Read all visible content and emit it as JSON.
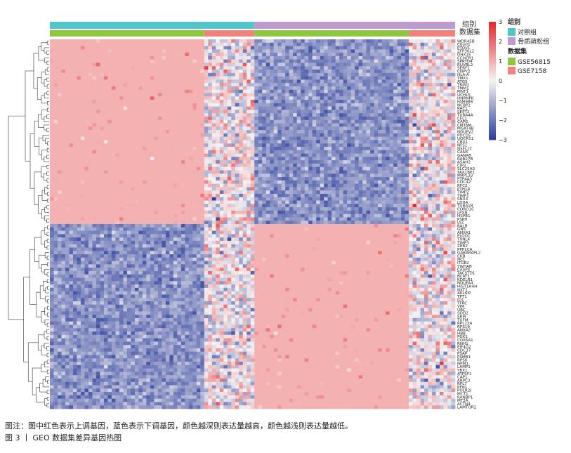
{
  "chart_data": {
    "type": "heatmap",
    "title": "",
    "annotation_rows": [
      {
        "name": "组别",
        "values": [
          "对照组",
          "骨质疏松组"
        ]
      },
      {
        "name": "数据集",
        "values": [
          "GSE56815",
          "GSE7158"
        ]
      }
    ],
    "column_groups": [
      {
        "group": "对照组",
        "dataset": "GSE56815",
        "columns": 40
      },
      {
        "group": "对照组",
        "dataset": "GSE7158",
        "columns": 13
      },
      {
        "group": "骨质疏松组",
        "dataset": "GSE56815",
        "columns": 40
      },
      {
        "group": "骨质疏松组",
        "dataset": "GSE7158",
        "columns": 12
      }
    ],
    "row_labels": [
      "WDR45B",
      "C6orf1",
      "PTOV1",
      "ZFP36L2",
      "DHX15",
      "CCHCR1",
      "SPRYD4",
      "RUVBL2",
      "SERF1",
      "CNPY2",
      "HLA-A",
      "TMX1",
      "ATG5",
      "TRIM1",
      "TMM1",
      "MNT1",
      "UCHL5",
      "HNRNPK",
      "FAM98B",
      "NCBP2",
      "RAC1",
      "SEPT2",
      "TUBA4A",
      "CFL1",
      "CAPG",
      "CMTM6",
      "MGAT4B",
      "NDUFV2",
      "PDCD5",
      "UQCR11",
      "CBX1",
      "NFS1",
      "NSFL1C",
      "CANX",
      "GANAB",
      "RAB27B",
      "ASAH2",
      "CIP2",
      "SLC25A3",
      "TAX1BP1",
      "MRPL33",
      "PTP4A3",
      "CDC42",
      "RFC2",
      "PTH1R",
      "TIMP2",
      "TIMP1",
      "SNX3",
      "LDHA",
      "TUBA1B",
      "CORO1C",
      "LPXN",
      "HSPB1",
      "PSPH",
      "LYZ",
      "RALB",
      "GNS",
      "ANXA1",
      "PLOD1",
      "TXNL4",
      "TIMP3",
      "ZEB2",
      "PPP1CA",
      "GABARAPL2",
      "CKB",
      "NCL",
      "ITGB2",
      "YWHAB",
      "CASP4",
      "TACSTD1",
      "BCAT1",
      "KDELR1",
      "NDUFA4",
      "HIST1H4H",
      "NXT1",
      "ARL6IP",
      "TPT1",
      "ID1",
      "TFRC",
      "VIM",
      "UBC",
      "SOD2",
      "SRM",
      "TUFM",
      "RPL13A",
      "RPS19",
      "ANXA2",
      "HBB",
      "PGK1",
      "COX6A1",
      "RNH1",
      "EIF4G2",
      "CDC37",
      "PSAP",
      "PSMB1",
      "RPS6",
      "NPM1",
      "LAMP1",
      "YBX1",
      "ATP5F1",
      "CAP1",
      "ARPC2",
      "RPL7",
      "PFN1",
      "POLR2J",
      "MCT1",
      "RANBP1",
      "MT2A",
      "ACTN4",
      "LAMTOR2"
    ],
    "row_clusters": [
      {
        "name": "上调",
        "rows": 55,
        "pattern": {
          "对照组-GSE56815": "red",
          "对照组-GSE7158": "mixed",
          "骨质疏松组-GSE56815": "blue",
          "骨质疏松组-GSE7158": "mixed"
        }
      },
      {
        "name": "下调",
        "rows": 55,
        "pattern": {
          "对照组-GSE56815": "blue",
          "对照组-GSE7158": "mixed",
          "骨质疏松组-GSE56815": "red",
          "骨质疏松组-GSE7158": "mixed"
        }
      }
    ],
    "color_scale": {
      "min": -3,
      "max": 3,
      "ticks": [
        3,
        2,
        1,
        0,
        -1,
        -2,
        -3
      ],
      "low": "#2c3f9c",
      "mid": "#f6f3f3",
      "high": "#e5262a",
      "block_red": "#f4b1b1",
      "block_blue": "#9a9ddc"
    },
    "annotation_colors": {
      "对照组": "#4fc6c9",
      "骨质疏松组": "#bd9ad0",
      "GSE56815": "#8dc63f",
      "GSE7158": "#f0837c"
    },
    "legend": {
      "group_title": "组别",
      "group_items": [
        "对照组",
        "骨质疏松组"
      ],
      "dataset_title": "数据集",
      "dataset_items": [
        "GSE56815",
        "GSE7158"
      ],
      "position": "right"
    }
  },
  "labels": {
    "annot_group": "组别",
    "annot_dataset": "数据集"
  },
  "caption": {
    "note": "图注：图中红色表示上调基因，蓝色表示下调基因，颜色越深则表达量越高，颜色越浅则表达量越低。",
    "title": "图 3 丨 GEO 数据集差异基因热图"
  }
}
